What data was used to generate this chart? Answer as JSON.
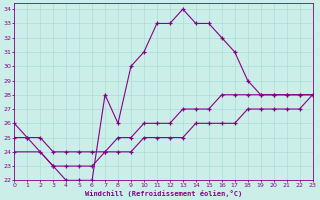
{
  "xlabel": "Windchill (Refroidissement éolien,°C)",
  "bg_color": "#cceee8",
  "line_color": "#880088",
  "grid_color": "#aaddda",
  "xlim": [
    0,
    23
  ],
  "ylim": [
    22,
    34.4
  ],
  "xticks": [
    0,
    1,
    2,
    3,
    4,
    5,
    6,
    7,
    8,
    9,
    10,
    11,
    12,
    13,
    14,
    15,
    16,
    17,
    18,
    19,
    20,
    21,
    22,
    23
  ],
  "yticks": [
    22,
    23,
    24,
    25,
    26,
    27,
    28,
    29,
    30,
    31,
    32,
    33,
    34
  ],
  "line1_x": [
    0,
    1,
    3,
    4,
    5,
    6,
    7,
    8,
    9,
    10,
    11,
    12,
    13,
    14,
    15,
    16,
    17,
    18,
    19,
    20,
    21,
    22,
    23
  ],
  "line1_y": [
    26,
    25,
    23,
    22,
    22,
    22,
    28,
    26,
    30,
    31,
    33,
    33,
    34,
    33,
    33,
    32,
    31,
    29,
    28,
    28,
    28,
    28,
    28
  ],
  "line2_x": [
    0,
    1,
    2,
    3,
    4,
    5,
    6,
    7,
    8,
    9,
    10,
    11,
    12,
    13,
    14,
    15,
    16,
    17,
    18,
    19,
    20,
    21,
    22,
    23
  ],
  "line2_y": [
    25,
    25,
    25,
    24,
    24,
    24,
    24,
    24,
    25,
    25,
    26,
    26,
    26,
    27,
    27,
    27,
    28,
    28,
    28,
    28,
    28,
    28,
    28,
    28
  ],
  "line3_x": [
    0,
    2,
    3,
    4,
    5,
    6,
    7,
    8,
    9,
    10,
    11,
    12,
    13,
    14,
    15,
    16,
    17,
    18,
    19,
    20,
    21,
    22,
    23
  ],
  "line3_y": [
    24,
    24,
    23,
    23,
    23,
    23,
    24,
    24,
    24,
    25,
    25,
    25,
    25,
    26,
    26,
    26,
    26,
    27,
    27,
    27,
    27,
    27,
    28
  ]
}
